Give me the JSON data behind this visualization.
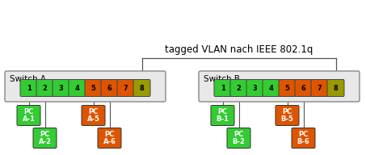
{
  "title": "tagged VLAN nach IEEE 802.1q",
  "switch_a_label": "Switch A",
  "switch_b_label": "Switch B",
  "port_colors": [
    "#33cc33",
    "#33cc33",
    "#33cc33",
    "#33cc33",
    "#dd5500",
    "#dd5500",
    "#dd5500",
    "#999900"
  ],
  "port_labels": [
    "1",
    "2",
    "3",
    "4",
    "5",
    "6",
    "7",
    "8"
  ],
  "switch_a_pcs": [
    {
      "label": "PC\nA-1",
      "color": "#33cc33",
      "port": 0,
      "row": 0
    },
    {
      "label": "PC\nA-2",
      "color": "#33cc33",
      "port": 1,
      "row": 1
    },
    {
      "label": "PC\nA-5",
      "color": "#dd5500",
      "port": 4,
      "row": 0
    },
    {
      "label": "PC\nA-6",
      "color": "#dd5500",
      "port": 5,
      "row": 1
    }
  ],
  "switch_b_pcs": [
    {
      "label": "PC\nB-1",
      "color": "#33cc33",
      "port": 0,
      "row": 0
    },
    {
      "label": "PC\nB-2",
      "color": "#33cc33",
      "port": 1,
      "row": 1
    },
    {
      "label": "PC\nB-5",
      "color": "#dd5500",
      "port": 4,
      "row": 0
    },
    {
      "label": "PC\nB-6",
      "color": "#dd5500",
      "port": 5,
      "row": 1
    }
  ],
  "switch_bg": "#e8e8e8",
  "fig_bg": "#ffffff",
  "border_color": "#888888",
  "line_color": "#555555",
  "text_color": "#000000",
  "title_fontsize": 8.5,
  "switch_label_fontsize": 7.5,
  "port_fontsize": 6,
  "pc_fontsize": 6
}
